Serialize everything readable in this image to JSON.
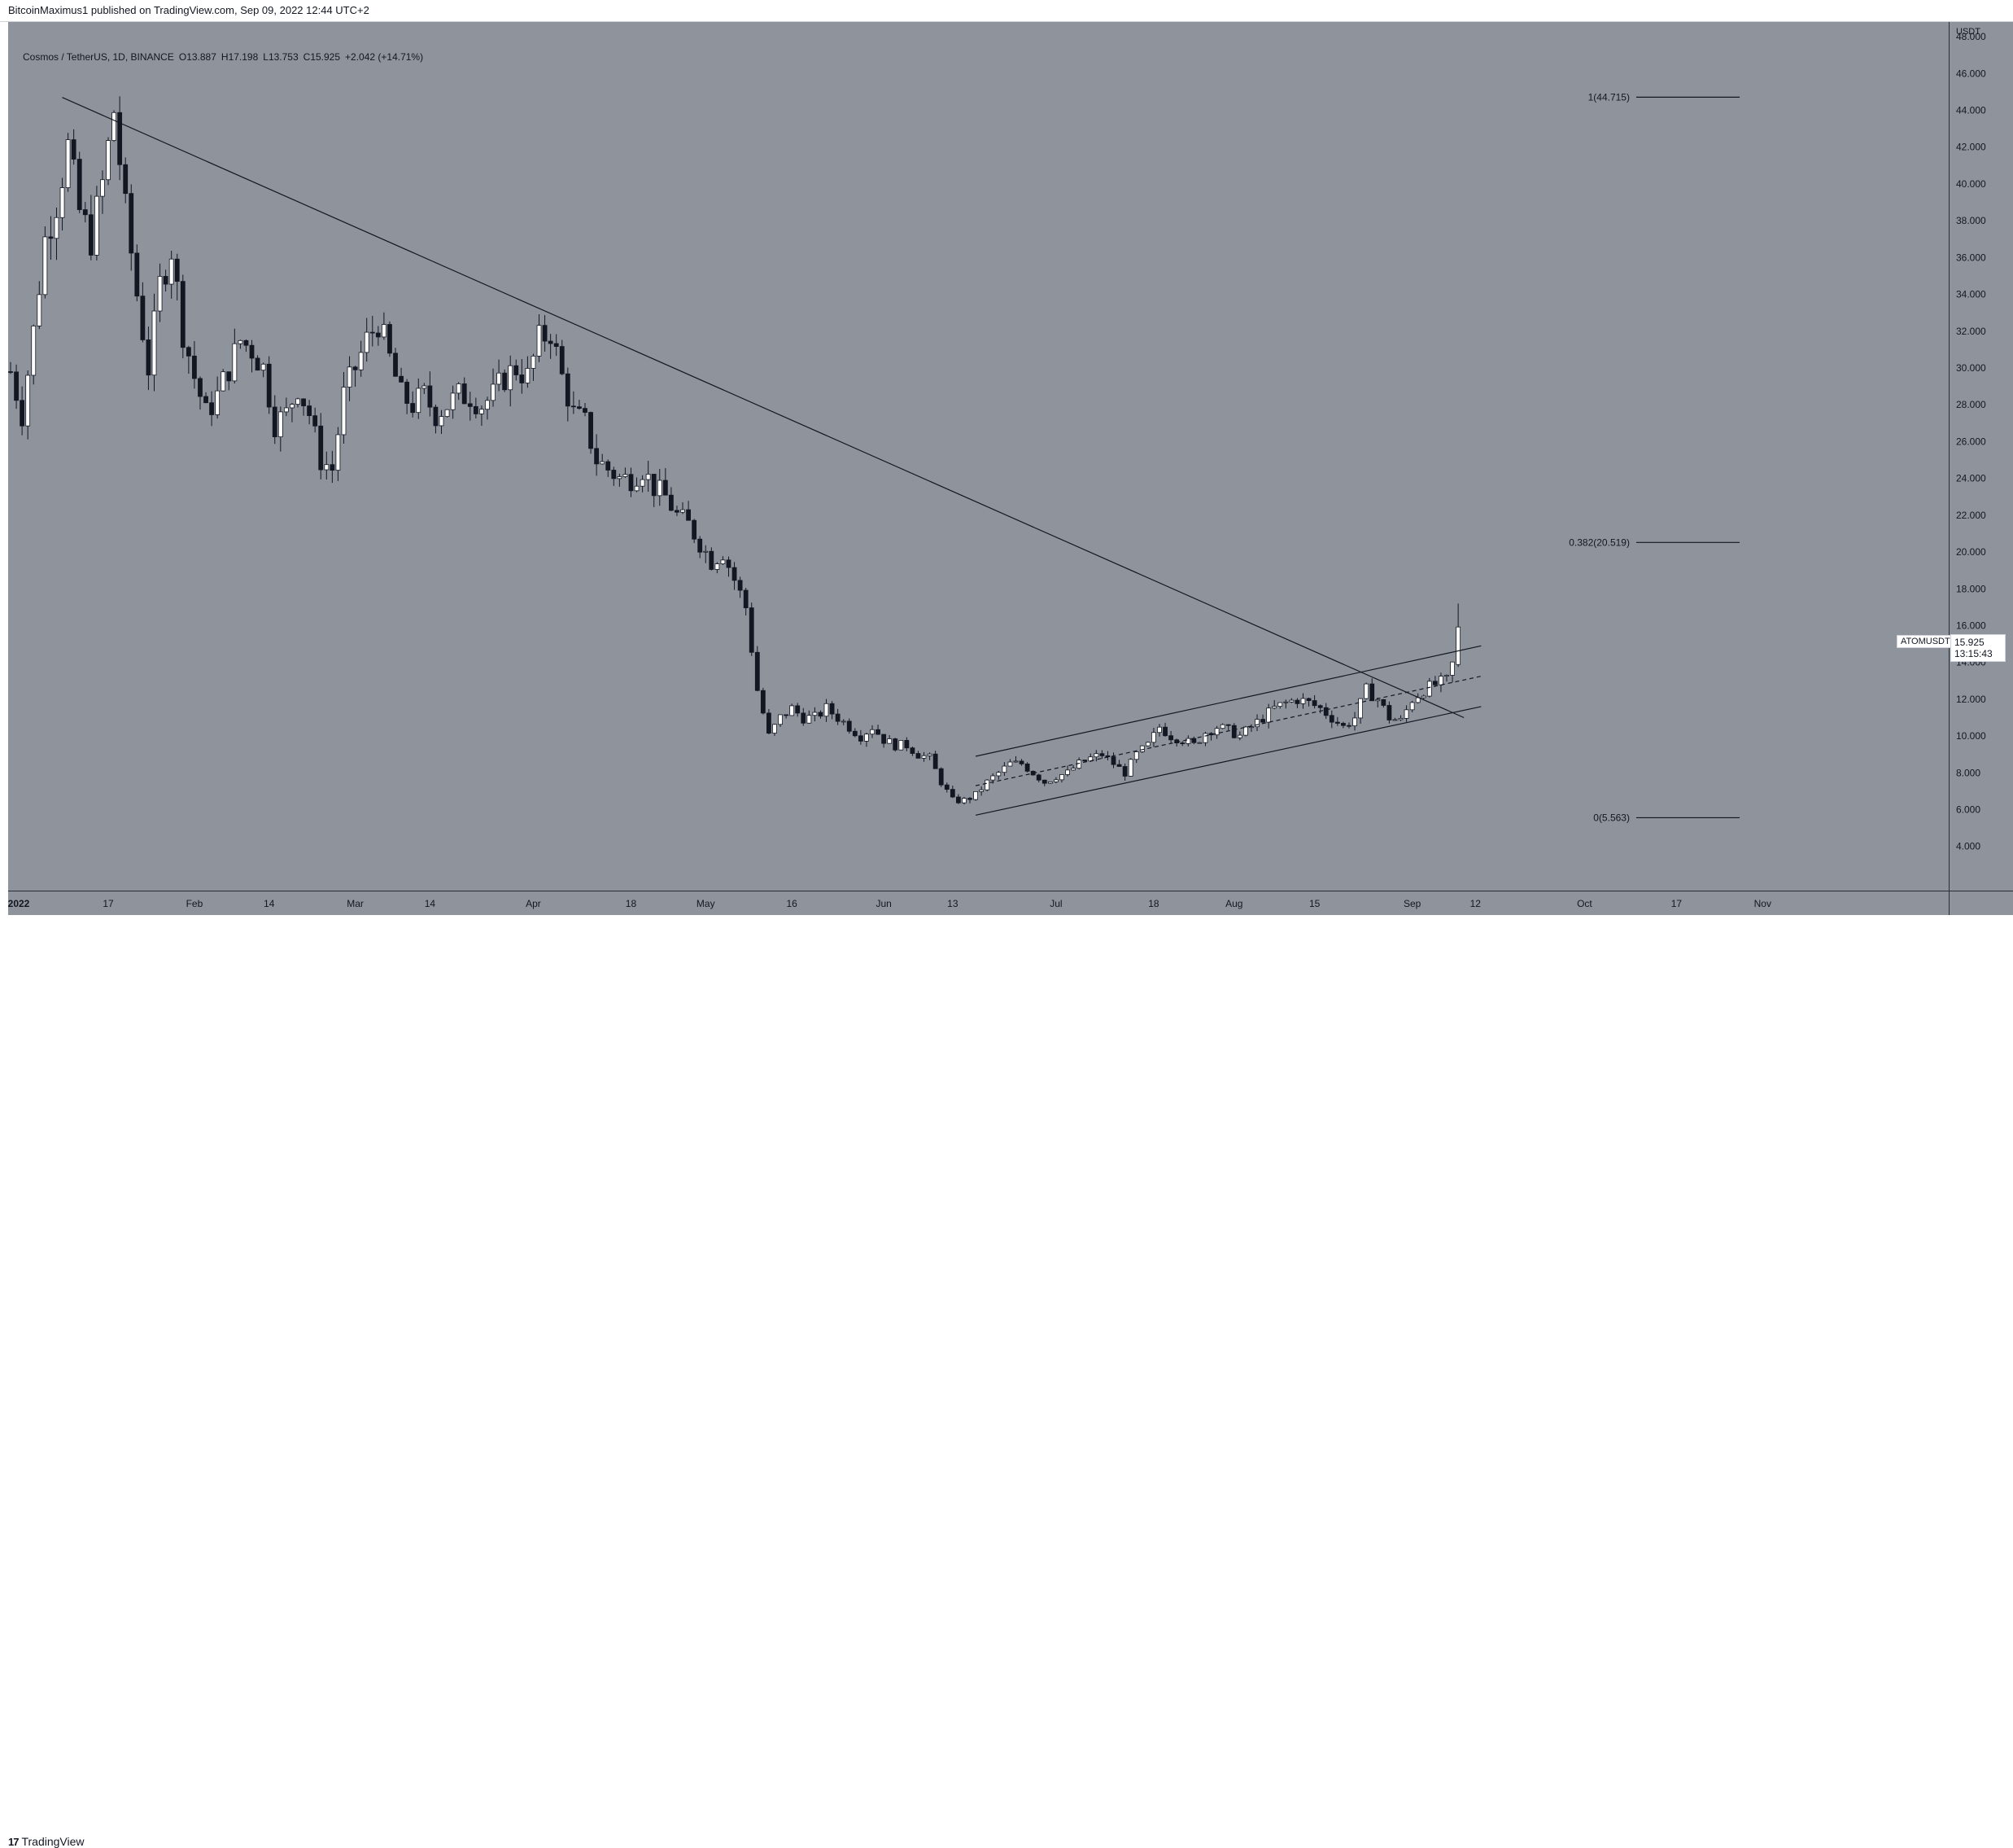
{
  "header": {
    "published_text": "BitcoinMaximus1 published on TradingView.com, Sep 09, 2022 12:44 UTC+2"
  },
  "legend": {
    "symbol": "Cosmos / TetherUS, 1D, BINANCE",
    "open_key": "O",
    "open": "13.887",
    "high_key": "H",
    "high": "17.198",
    "low_key": "L",
    "low": "13.753",
    "close_key": "C",
    "close": "15.925",
    "change": "+2.042 (+14.71%)"
  },
  "price_axis": {
    "unit": "USDT",
    "ticks": [
      "48.000",
      "46.000",
      "44.000",
      "42.000",
      "40.000",
      "38.000",
      "36.000",
      "34.000",
      "32.000",
      "30.000",
      "28.000",
      "26.000",
      "24.000",
      "22.000",
      "20.000",
      "18.000",
      "16.000",
      "14.000",
      "12.000",
      "10.000",
      "8.000",
      "6.000",
      "4.000"
    ],
    "symbol_tag": "ATOMUSDT",
    "last_price": "15.925",
    "countdown": "13:15:43"
  },
  "time_axis": {
    "ticks": [
      "2022",
      "17",
      "Feb",
      "14",
      "Mar",
      "14",
      "Apr",
      "18",
      "May",
      "16",
      "Jun",
      "13",
      "Jul",
      "18",
      "Aug",
      "15",
      "Sep",
      "12",
      "Oct",
      "17",
      "Nov"
    ]
  },
  "fib_levels": [
    {
      "label": "1(44.715)",
      "value": 44.715
    },
    {
      "label": "0.382(20.519)",
      "value": 20.519
    },
    {
      "label": "0(5.563)",
      "value": 5.563
    }
  ],
  "footer": {
    "brand": "TradingView",
    "brand_glyph": "17"
  },
  "colors": {
    "background": "#8f939c",
    "up_candle": "#ffffff",
    "down_candle": "#131722",
    "lines": "#131722"
  },
  "chart_data": {
    "type": "candlestick",
    "title": "Cosmos / TetherUS, 1D, BINANCE",
    "ylabel": "USDT",
    "ylim": [
      3,
      49
    ],
    "x_range": [
      "2021-12-31",
      "2022-11-08"
    ],
    "grid": false,
    "ohlc_anchors": [
      [
        "2021-12-31",
        29.8
      ],
      [
        "2022-01-02",
        27.5
      ],
      [
        "2022-01-04",
        32.0
      ],
      [
        "2022-01-06",
        37.0
      ],
      [
        "2022-01-08",
        39.0
      ],
      [
        "2022-01-10",
        42.0
      ],
      [
        "2022-01-12",
        38.5
      ],
      [
        "2022-01-14",
        37.0
      ],
      [
        "2022-01-16",
        40.0
      ],
      [
        "2022-01-18",
        44.0
      ],
      [
        "2022-01-20",
        38.5
      ],
      [
        "2022-01-22",
        34.0
      ],
      [
        "2022-01-24",
        30.0
      ],
      [
        "2022-01-26",
        34.5
      ],
      [
        "2022-01-28",
        36.5
      ],
      [
        "2022-01-30",
        32.0
      ],
      [
        "2022-02-01",
        29.5
      ],
      [
        "2022-02-03",
        27.5
      ],
      [
        "2022-02-05",
        28.5
      ],
      [
        "2022-02-07",
        30.0
      ],
      [
        "2022-02-09",
        31.5
      ],
      [
        "2022-02-11",
        31.0
      ],
      [
        "2022-02-13",
        30.0
      ],
      [
        "2022-02-15",
        27.0
      ],
      [
        "2022-02-17",
        27.5
      ],
      [
        "2022-02-19",
        29.0
      ],
      [
        "2022-02-21",
        27.5
      ],
      [
        "2022-02-23",
        25.0
      ],
      [
        "2022-02-25",
        24.5
      ],
      [
        "2022-02-27",
        28.5
      ],
      [
        "2022-03-01",
        30.0
      ],
      [
        "2022-03-03",
        31.5
      ],
      [
        "2022-03-05",
        32.5
      ],
      [
        "2022-03-07",
        30.5
      ],
      [
        "2022-03-09",
        28.5
      ],
      [
        "2022-03-11",
        28.0
      ],
      [
        "2022-03-13",
        28.5
      ],
      [
        "2022-03-15",
        27.5
      ],
      [
        "2022-03-17",
        28.0
      ],
      [
        "2022-03-19",
        28.5
      ],
      [
        "2022-03-21",
        28.5
      ],
      [
        "2022-03-23",
        28.0
      ],
      [
        "2022-03-25",
        28.5
      ],
      [
        "2022-03-27",
        29.5
      ],
      [
        "2022-03-29",
        30.0
      ],
      [
        "2022-03-31",
        29.5
      ],
      [
        "2022-04-02",
        31.5
      ],
      [
        "2022-04-04",
        32.0
      ],
      [
        "2022-04-06",
        29.5
      ],
      [
        "2022-04-08",
        27.5
      ],
      [
        "2022-04-10",
        27.0
      ],
      [
        "2022-04-12",
        25.0
      ],
      [
        "2022-04-14",
        24.5
      ],
      [
        "2022-04-16",
        24.0
      ],
      [
        "2022-04-18",
        24.0
      ],
      [
        "2022-04-20",
        24.5
      ],
      [
        "2022-04-22",
        23.5
      ],
      [
        "2022-04-24",
        23.0
      ],
      [
        "2022-04-26",
        22.0
      ],
      [
        "2022-04-28",
        21.5
      ],
      [
        "2022-04-30",
        20.5
      ],
      [
        "2022-05-02",
        19.5
      ],
      [
        "2022-05-04",
        20.0
      ],
      [
        "2022-05-06",
        18.5
      ],
      [
        "2022-05-08",
        17.0
      ],
      [
        "2022-05-10",
        12.5
      ],
      [
        "2022-05-12",
        10.0
      ],
      [
        "2022-05-14",
        11.0
      ],
      [
        "2022-05-16",
        11.5
      ],
      [
        "2022-05-18",
        11.0
      ],
      [
        "2022-05-20",
        11.0
      ],
      [
        "2022-05-22",
        11.5
      ],
      [
        "2022-05-24",
        11.0
      ],
      [
        "2022-05-26",
        10.5
      ],
      [
        "2022-05-28",
        10.0
      ],
      [
        "2022-05-30",
        10.5
      ],
      [
        "2022-06-01",
        9.8
      ],
      [
        "2022-06-03",
        9.5
      ],
      [
        "2022-06-05",
        9.5
      ],
      [
        "2022-06-07",
        9.0
      ],
      [
        "2022-06-09",
        8.8
      ],
      [
        "2022-06-11",
        7.5
      ],
      [
        "2022-06-13",
        6.5
      ],
      [
        "2022-06-15",
        6.5
      ],
      [
        "2022-06-17",
        6.8
      ],
      [
        "2022-06-19",
        7.5
      ],
      [
        "2022-06-21",
        8.0
      ],
      [
        "2022-06-23",
        8.5
      ],
      [
        "2022-06-25",
        8.5
      ],
      [
        "2022-06-27",
        8.0
      ],
      [
        "2022-06-29",
        7.5
      ],
      [
        "2022-07-01",
        7.8
      ],
      [
        "2022-07-03",
        8.0
      ],
      [
        "2022-07-05",
        8.5
      ],
      [
        "2022-07-07",
        8.8
      ],
      [
        "2022-07-09",
        9.0
      ],
      [
        "2022-07-11",
        8.5
      ],
      [
        "2022-07-13",
        8.0
      ],
      [
        "2022-07-15",
        9.0
      ],
      [
        "2022-07-17",
        9.5
      ],
      [
        "2022-07-19",
        10.5
      ],
      [
        "2022-07-21",
        10.0
      ],
      [
        "2022-07-23",
        9.8
      ],
      [
        "2022-07-25",
        9.5
      ],
      [
        "2022-07-27",
        10.2
      ],
      [
        "2022-07-29",
        10.5
      ],
      [
        "2022-07-31",
        10.3
      ],
      [
        "2022-08-02",
        10.0
      ],
      [
        "2022-08-04",
        10.5
      ],
      [
        "2022-08-06",
        11.0
      ],
      [
        "2022-08-08",
        11.5
      ],
      [
        "2022-08-10",
        11.8
      ],
      [
        "2022-08-12",
        12.0
      ],
      [
        "2022-08-14",
        11.8
      ],
      [
        "2022-08-16",
        11.5
      ],
      [
        "2022-08-18",
        11.0
      ],
      [
        "2022-08-20",
        10.5
      ],
      [
        "2022-08-22",
        11.0
      ],
      [
        "2022-08-24",
        12.5
      ],
      [
        "2022-08-26",
        12.0
      ],
      [
        "2022-08-28",
        11.0
      ],
      [
        "2022-08-30",
        10.8
      ],
      [
        "2022-09-01",
        12.0
      ],
      [
        "2022-09-03",
        12.5
      ],
      [
        "2022-09-05",
        12.8
      ],
      [
        "2022-09-07",
        13.0
      ],
      [
        "2022-09-08",
        13.887
      ],
      [
        "2022-09-09",
        15.925
      ]
    ],
    "last_candle": {
      "date": "2022-09-09",
      "open": 13.887,
      "high": 17.198,
      "low": 13.753,
      "close": 15.925
    },
    "annotations": {
      "descending_trendline": [
        [
          "2022-01-09",
          44.7
        ],
        [
          "2022-09-10",
          11.0
        ]
      ],
      "channel_upper": [
        [
          "2022-06-17",
          8.9
        ],
        [
          "2022-09-13",
          14.9
        ]
      ],
      "channel_lower": [
        [
          "2022-06-17",
          5.7
        ],
        [
          "2022-09-13",
          11.6
        ]
      ],
      "channel_mid": [
        [
          "2022-06-17",
          7.3
        ],
        [
          "2022-09-13",
          13.25
        ]
      ],
      "fib_line_x": [
        [
          "2022-10-10"
        ],
        [
          "2022-10-28"
        ]
      ]
    }
  }
}
